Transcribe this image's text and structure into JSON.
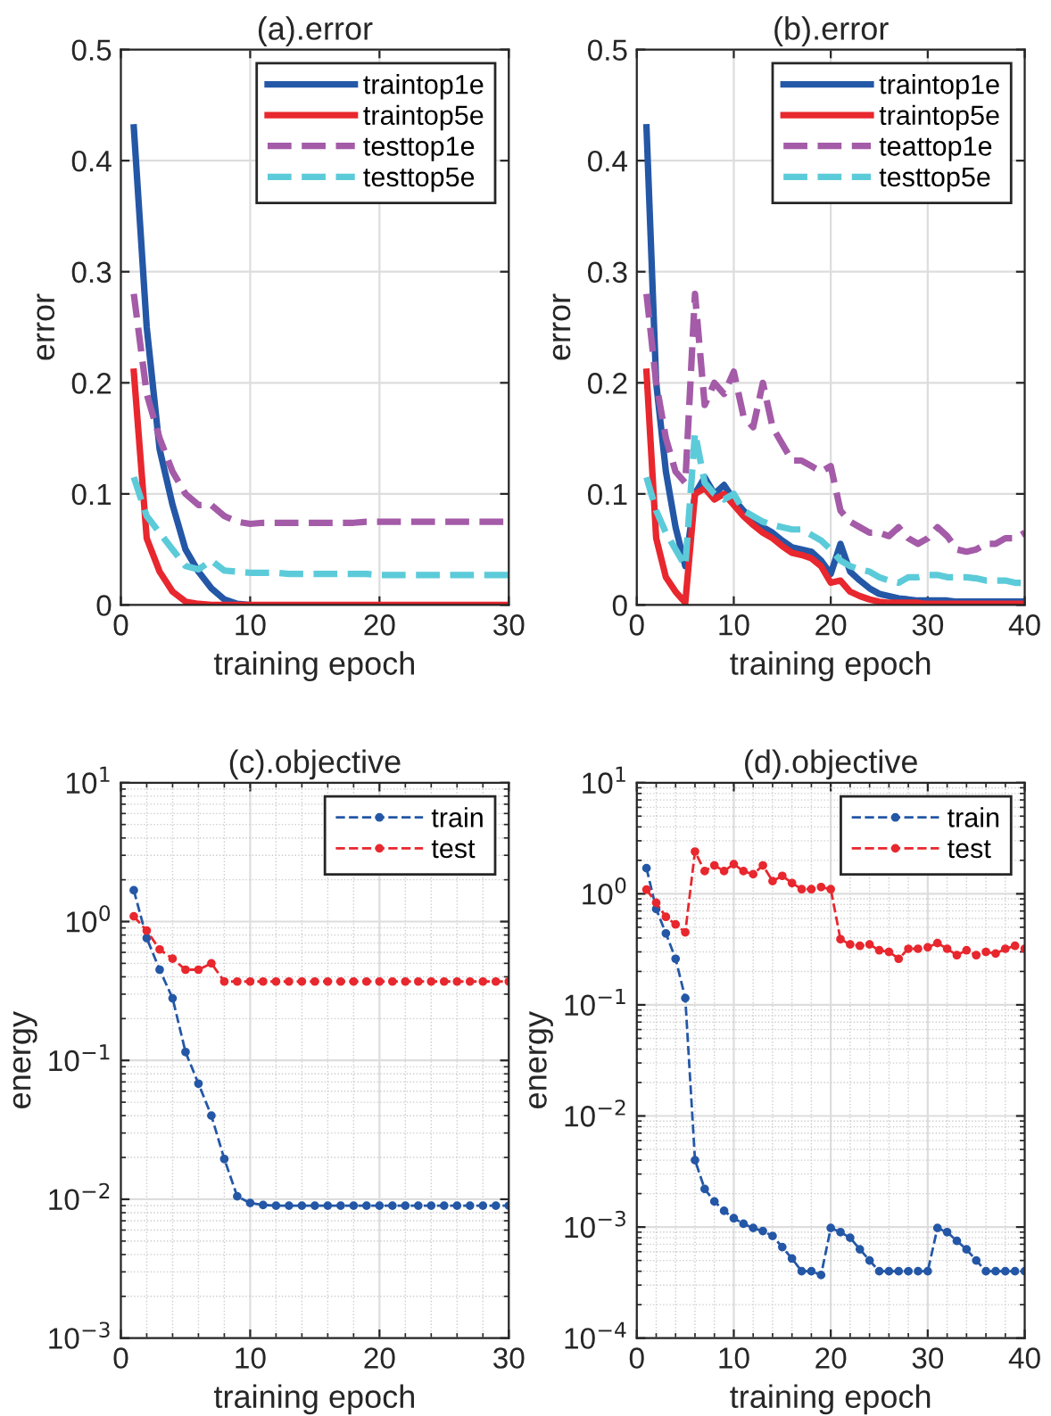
{
  "chart_data": [
    {
      "type": "line",
      "title": "(a).error",
      "xlabel": "training epoch",
      "ylabel": "error",
      "xlim": [
        0,
        30
      ],
      "xticks": [
        0,
        10,
        20,
        30
      ],
      "ylim": [
        0,
        0.5
      ],
      "yticks": [
        0,
        0.1,
        0.2,
        0.3,
        0.4,
        0.5
      ],
      "grid": true,
      "legend": "top right",
      "x": [
        1,
        2,
        3,
        4,
        5,
        6,
        7,
        8,
        9,
        10,
        11,
        12,
        13,
        14,
        15,
        16,
        17,
        18,
        19,
        20,
        21,
        22,
        23,
        24,
        25,
        26,
        27,
        28,
        29,
        30
      ],
      "series": [
        {
          "name": "traintop1e",
          "color": "#2457a6",
          "line_style": "solid",
          "values": [
            0.43,
            0.25,
            0.14,
            0.09,
            0.05,
            0.03,
            0.015,
            0.005,
            0.001,
            0,
            null,
            null,
            null,
            null,
            null,
            null,
            null,
            null,
            null,
            null,
            null,
            null,
            null,
            null,
            null,
            null,
            null,
            null,
            null,
            null
          ]
        },
        {
          "name": "traintop5e",
          "color": "#e8272e",
          "line_style": "solid",
          "values": [
            0.21,
            0.06,
            0.03,
            0.012,
            0.003,
            0.001,
            0,
            0,
            0,
            0,
            0,
            0,
            0,
            0,
            0,
            0,
            0,
            0,
            0,
            0,
            0,
            0,
            0,
            0,
            0,
            0,
            0,
            0,
            0,
            0
          ]
        },
        {
          "name": "testtop1e",
          "color": "#a45ba8",
          "line_style": "dashed",
          "values": [
            0.28,
            0.19,
            0.15,
            0.12,
            0.1,
            0.09,
            0.09,
            0.08,
            0.075,
            0.073,
            0.074,
            0.074,
            0.074,
            0.074,
            0.074,
            0.074,
            0.074,
            0.074,
            0.075,
            0.075,
            0.075,
            0.075,
            0.075,
            0.075,
            0.075,
            0.075,
            0.075,
            0.075,
            0.075,
            0.075
          ]
        },
        {
          "name": "testtop5e",
          "color": "#5ccbd9",
          "line_style": "dashed",
          "values": [
            0.115,
            0.08,
            0.065,
            0.05,
            0.035,
            0.032,
            0.04,
            0.031,
            0.03,
            0.029,
            0.029,
            0.029,
            0.028,
            0.028,
            0.028,
            0.028,
            0.028,
            0.028,
            0.028,
            0.027,
            0.027,
            0.027,
            0.027,
            0.027,
            0.027,
            0.027,
            0.027,
            0.027,
            0.027,
            0.027
          ]
        }
      ]
    },
    {
      "type": "line",
      "title": "(b).error",
      "xlabel": "training epoch",
      "ylabel": "error",
      "xlim": [
        0,
        40
      ],
      "xticks": [
        0,
        10,
        20,
        30,
        40
      ],
      "ylim": [
        0,
        0.5
      ],
      "yticks": [
        0,
        0.1,
        0.2,
        0.3,
        0.4,
        0.5
      ],
      "grid": true,
      "legend": "top right",
      "x": [
        1,
        2,
        3,
        4,
        5,
        6,
        7,
        8,
        9,
        10,
        11,
        12,
        13,
        14,
        15,
        16,
        17,
        18,
        19,
        20,
        21,
        22,
        23,
        24,
        25,
        26,
        27,
        28,
        29,
        30,
        31,
        32,
        33,
        34,
        35,
        36,
        37,
        38,
        39,
        40
      ],
      "series": [
        {
          "name": "traintop1e",
          "color": "#2457a6",
          "line_style": "solid",
          "values": [
            0.43,
            0.2,
            0.12,
            0.07,
            0.035,
            0.1,
            0.115,
            0.1,
            0.108,
            0.095,
            0.085,
            0.075,
            0.07,
            0.065,
            0.058,
            0.052,
            0.05,
            0.048,
            0.04,
            0.028,
            0.055,
            0.03,
            0.022,
            0.015,
            0.01,
            0.008,
            0.006,
            0.005,
            0.004,
            0.004,
            0.004,
            0.004,
            0.003,
            0.003,
            0.003,
            0.003,
            0.003,
            0.003,
            0.003,
            0.003
          ]
        },
        {
          "name": "traintop5e",
          "color": "#e8272e",
          "line_style": "solid",
          "values": [
            0.21,
            0.06,
            0.025,
            0.012,
            0.002,
            0.1,
            0.105,
            0.095,
            0.1,
            0.09,
            0.08,
            0.072,
            0.065,
            0.06,
            0.053,
            0.047,
            0.045,
            0.042,
            0.035,
            0.02,
            0.022,
            0.012,
            0.008,
            0.005,
            0.003,
            0.002,
            0.002,
            0.002,
            0.002,
            0.001,
            0.001,
            0.001,
            0.001,
            0.001,
            0.001,
            0.001,
            0.001,
            0.001,
            0.001,
            0.001
          ]
        },
        {
          "name": "teattop1e",
          "color": "#a45ba8",
          "line_style": "dashed",
          "values": [
            0.28,
            0.2,
            0.15,
            0.12,
            0.11,
            0.28,
            0.18,
            0.2,
            0.19,
            0.21,
            0.17,
            0.16,
            0.2,
            0.16,
            0.145,
            0.13,
            0.13,
            0.125,
            0.12,
            0.125,
            0.085,
            0.075,
            0.07,
            0.065,
            0.065,
            0.062,
            0.07,
            0.06,
            0.055,
            0.06,
            0.07,
            0.062,
            0.05,
            0.048,
            0.05,
            0.055,
            0.055,
            0.06,
            0.06,
            0.065
          ]
        },
        {
          "name": "testtop5e",
          "color": "#5ccbd9",
          "line_style": "dashed",
          "values": [
            0.115,
            0.085,
            0.065,
            0.05,
            0.035,
            0.155,
            0.11,
            0.1,
            0.095,
            0.1,
            0.085,
            0.08,
            0.075,
            0.072,
            0.07,
            0.068,
            0.068,
            0.063,
            0.058,
            0.05,
            0.04,
            0.035,
            0.032,
            0.03,
            0.025,
            0.022,
            0.02,
            0.025,
            0.025,
            0.027,
            0.027,
            0.025,
            0.025,
            0.025,
            0.024,
            0.022,
            0.022,
            0.022,
            0.02,
            0.02
          ]
        }
      ]
    },
    {
      "type": "line",
      "title": "(c).objective",
      "xlabel": "training epoch",
      "ylabel": "energy",
      "log": "y",
      "xlim": [
        0,
        30
      ],
      "xticks": [
        0,
        10,
        20,
        30
      ],
      "ylim": [
        0.001,
        10
      ],
      "yticks": [
        {
          "value": 0.001,
          "label": "10$^{−3}$"
        },
        {
          "value": 0.01,
          "label": "10$^{−2}$"
        },
        {
          "value": 0.1,
          "label": "10$^{−1}$"
        },
        {
          "value": 1,
          "label": "10$^{0}$"
        },
        {
          "value": 10,
          "label": "10$^{1}$"
        }
      ],
      "grid": true,
      "legend": "top right",
      "marker": "circle",
      "line_style": "dashed",
      "x": [
        1,
        2,
        3,
        4,
        5,
        6,
        7,
        8,
        9,
        10,
        11,
        12,
        13,
        14,
        15,
        16,
        17,
        18,
        19,
        20,
        21,
        22,
        23,
        24,
        25,
        26,
        27,
        28,
        29,
        30
      ],
      "series": [
        {
          "name": "train",
          "color": "#2457a6",
          "values": [
            1.68,
            0.76,
            0.45,
            0.28,
            0.115,
            0.068,
            0.04,
            0.0195,
            0.0105,
            0.0094,
            0.0091,
            0.009,
            0.009,
            0.009,
            0.009,
            0.009,
            0.009,
            0.009,
            0.009,
            0.009,
            0.009,
            0.009,
            0.009,
            0.009,
            0.009,
            0.009,
            0.009,
            0.009,
            0.009,
            0.009
          ]
        },
        {
          "name": "test",
          "color": "#e8272e",
          "values": [
            1.09,
            0.86,
            0.63,
            0.54,
            0.45,
            0.45,
            0.5,
            0.37,
            0.37,
            0.37,
            0.37,
            0.37,
            0.37,
            0.37,
            0.37,
            0.37,
            0.37,
            0.37,
            0.37,
            0.37,
            0.37,
            0.37,
            0.37,
            0.37,
            0.37,
            0.37,
            0.37,
            0.37,
            0.37,
            0.37
          ]
        }
      ]
    },
    {
      "type": "line",
      "title": "(d).objective",
      "xlabel": "training epoch",
      "ylabel": "energy",
      "log": "y",
      "xlim": [
        0,
        40
      ],
      "xticks": [
        0,
        10,
        20,
        30,
        40
      ],
      "ylim": [
        0.0001,
        10
      ],
      "yticks": [
        {
          "value": 0.0001,
          "label": "10$^{−4}$"
        },
        {
          "value": 0.001,
          "label": "10$^{−3}$"
        },
        {
          "value": 0.01,
          "label": "10$^{−2}$"
        },
        {
          "value": 0.1,
          "label": "10$^{−1}$"
        },
        {
          "value": 1,
          "label": "10$^{0}$"
        },
        {
          "value": 10,
          "label": "10$^{1}$"
        }
      ],
      "grid": true,
      "legend": "top right",
      "marker": "circle",
      "line_style": "dashed",
      "x": [
        1,
        2,
        3,
        4,
        5,
        6,
        7,
        8,
        9,
        10,
        11,
        12,
        13,
        14,
        15,
        16,
        17,
        18,
        19,
        20,
        21,
        22,
        23,
        24,
        25,
        26,
        27,
        28,
        29,
        30,
        31,
        32,
        33,
        34,
        35,
        36,
        37,
        38,
        39,
        40
      ],
      "series": [
        {
          "name": "train",
          "color": "#2457a6",
          "values": [
            1.7,
            0.73,
            0.44,
            0.26,
            0.115,
            0.004,
            0.0022,
            0.0017,
            0.0014,
            0.0012,
            0.00107,
            0.00098,
            0.00092,
            0.00083,
            0.00066,
            0.00052,
            0.0004,
            0.0004,
            0.00037,
            0.00098,
            0.0009,
            0.0008,
            0.00063,
            0.0005,
            0.0004,
            0.0004,
            0.0004,
            0.0004,
            0.0004,
            0.0004,
            0.00098,
            0.0009,
            0.00075,
            0.00063,
            0.0005,
            0.0004,
            0.0004,
            0.0004,
            0.0004,
            0.0004
          ]
        },
        {
          "name": "test",
          "color": "#e8272e",
          "values": [
            1.09,
            0.83,
            0.62,
            0.53,
            0.45,
            2.4,
            1.6,
            1.8,
            1.6,
            1.85,
            1.6,
            1.5,
            1.8,
            1.3,
            1.45,
            1.25,
            1.1,
            1.1,
            1.15,
            1.1,
            0.39,
            0.35,
            0.34,
            0.35,
            0.31,
            0.3,
            0.26,
            0.32,
            0.32,
            0.33,
            0.36,
            0.32,
            0.28,
            0.31,
            0.28,
            0.3,
            0.29,
            0.32,
            0.34,
            0.32
          ]
        }
      ]
    }
  ]
}
